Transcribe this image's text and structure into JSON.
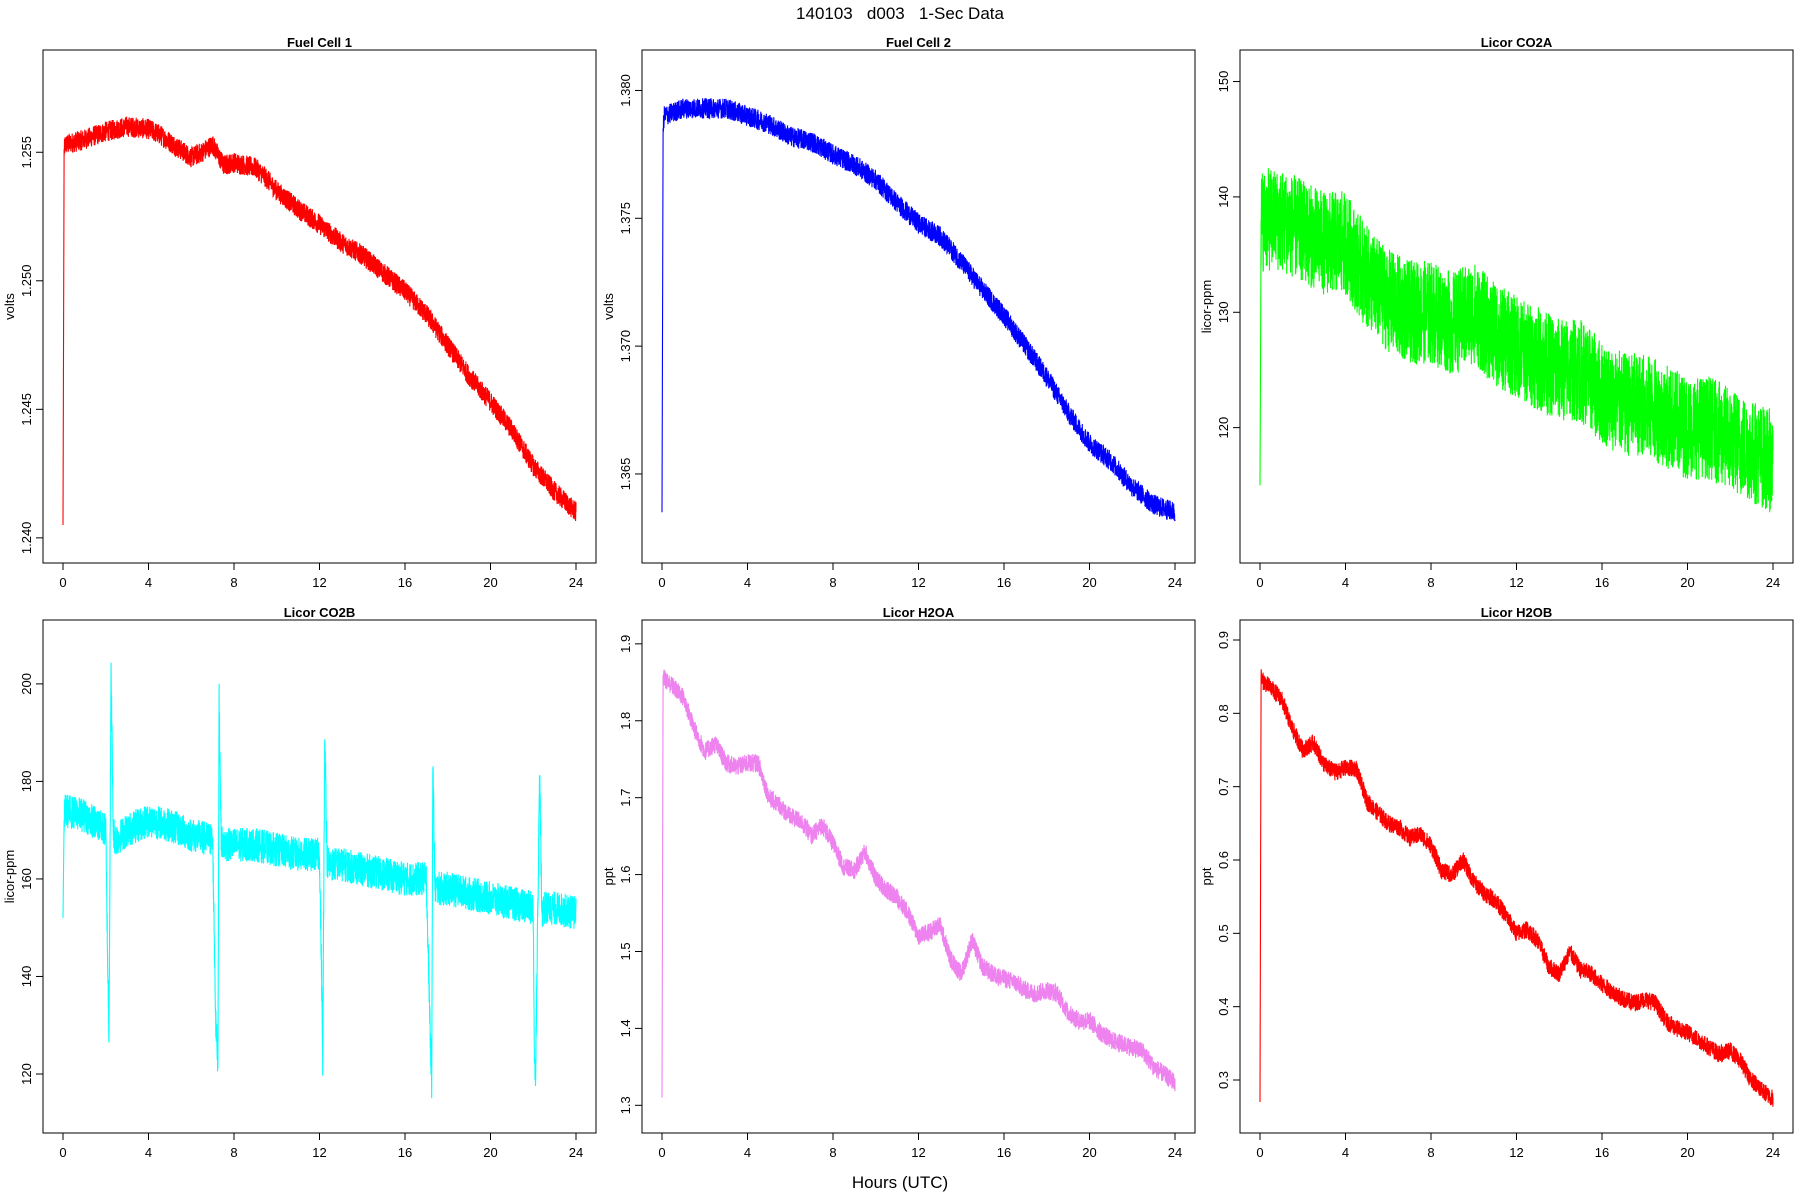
{
  "figure": {
    "title": "140103   d003   1-Sec Data",
    "xlabel": "Hours (UTC)"
  },
  "chart_data": [
    {
      "type": "line",
      "title": "Fuel Cell 1",
      "xlabel": "",
      "ylabel": "volts",
      "color": "#ff0000",
      "xlim": [
        0,
        24
      ],
      "ylim": [
        1.2398,
        1.2582
      ],
      "x_ticks": [
        "0",
        "4",
        "8",
        "12",
        "16",
        "20",
        "24"
      ],
      "y_ticks": [
        "1.240",
        "1.245",
        "1.250",
        "1.255"
      ],
      "y_tick_values": [
        1.24,
        1.245,
        1.25,
        1.255
      ],
      "noise": 0.0004,
      "series": [
        {
          "x": [
            0,
            0.05,
            0.1,
            1,
            2,
            3,
            4,
            4.5,
            5,
            6,
            6.5,
            7,
            7.5,
            8,
            9,
            9.5,
            10,
            11,
            12,
            13,
            14,
            15,
            16,
            17,
            18,
            19,
            20,
            21,
            22,
            23,
            24
          ],
          "y": [
            1.2405,
            1.255,
            1.2553,
            1.2555,
            1.2558,
            1.256,
            1.2559,
            1.2557,
            1.2554,
            1.2548,
            1.255,
            1.2553,
            1.2545,
            1.2546,
            1.2544,
            1.254,
            1.2535,
            1.2528,
            1.2522,
            1.2515,
            1.251,
            1.2503,
            1.2496,
            1.2487,
            1.2475,
            1.2463,
            1.2453,
            1.2442,
            1.2428,
            1.2418,
            1.241
          ]
        }
      ]
    },
    {
      "type": "line",
      "title": "Fuel Cell 2",
      "xlabel": "",
      "ylabel": "volts",
      "color": "#0000ff",
      "xlim": [
        0,
        24
      ],
      "ylim": [
        1.3623,
        1.3808
      ],
      "x_ticks": [
        "0",
        "4",
        "8",
        "12",
        "16",
        "20",
        "24"
      ],
      "y_ticks": [
        "1.365",
        "1.370",
        "1.375",
        "1.380"
      ],
      "y_tick_values": [
        1.365,
        1.37,
        1.375,
        1.38
      ],
      "noise": 0.0004,
      "series": [
        {
          "x": [
            0,
            0.05,
            0.1,
            1,
            2,
            3,
            4,
            5,
            6,
            7,
            8,
            9,
            10,
            11,
            12,
            13,
            14,
            15,
            16,
            17,
            18,
            19,
            20,
            21,
            22,
            23,
            24
          ],
          "y": [
            1.3635,
            1.3785,
            1.379,
            1.3793,
            1.3793,
            1.3793,
            1.379,
            1.3787,
            1.3782,
            1.378,
            1.3775,
            1.3771,
            1.3765,
            1.3756,
            1.3748,
            1.3743,
            1.3733,
            1.3722,
            1.3712,
            1.37,
            1.3688,
            1.3674,
            1.3662,
            1.3655,
            1.3645,
            1.3638,
            1.3635
          ]
        }
      ]
    },
    {
      "type": "line",
      "title": "Licor CO2A",
      "xlabel": "",
      "ylabel": "licor-ppm",
      "color": "#00ff00",
      "xlim": [
        0,
        24
      ],
      "ylim": [
        110,
        151
      ],
      "x_ticks": [
        "0",
        "4",
        "8",
        "12",
        "16",
        "20",
        "24"
      ],
      "y_ticks": [
        "120",
        "130",
        "140",
        "150"
      ],
      "y_tick_values": [
        120,
        130,
        140,
        150
      ],
      "noise": 4.5,
      "series": [
        {
          "x": [
            0,
            0.05,
            0.1,
            1,
            2,
            3,
            4,
            5,
            6,
            7,
            8,
            9,
            10,
            11,
            12,
            13,
            14,
            15,
            16,
            17,
            18,
            19,
            20,
            21,
            22,
            23,
            24
          ],
          "y": [
            115,
            138,
            138,
            138,
            137,
            136,
            136,
            133,
            131,
            130,
            130,
            129,
            130,
            128,
            127,
            126,
            125,
            125,
            123,
            122,
            122,
            121,
            120,
            120,
            119,
            118,
            117
          ]
        }
      ]
    },
    {
      "type": "line",
      "title": "Licor CO2B",
      "xlabel": "",
      "ylabel": "licor-ppm",
      "color": "#00ffff",
      "xlim": [
        0,
        24
      ],
      "ylim": [
        112,
        209
      ],
      "x_ticks": [
        "0",
        "4",
        "8",
        "12",
        "16",
        "20",
        "24"
      ],
      "y_ticks": [
        "120",
        "140",
        "160",
        "180",
        "200"
      ],
      "y_tick_values": [
        120,
        140,
        160,
        180,
        200
      ],
      "noise": 3.5,
      "series": [
        {
          "x": [
            0,
            0.05,
            0.1,
            1,
            2,
            2.1,
            2.15,
            2.25,
            2.35,
            2.45,
            3,
            4,
            5,
            6,
            7,
            7.15,
            7.25,
            7.3,
            7.4,
            7.5,
            8,
            9,
            10,
            11,
            12,
            12.1,
            12.15,
            12.25,
            12.35,
            12.45,
            13,
            14,
            15,
            16,
            17,
            17.2,
            17.25,
            17.3,
            17.4,
            17.5,
            18,
            19,
            20,
            21,
            22,
            22.05,
            22.1,
            22.3,
            22.4,
            22.5,
            23,
            24
          ],
          "y": [
            152,
            172,
            174,
            173,
            170,
            140,
            128,
            203,
            170,
            168,
            170,
            172,
            171,
            169,
            168,
            130,
            123,
            197,
            168,
            167,
            167,
            167,
            166,
            165,
            165,
            140,
            122,
            191,
            164,
            163,
            163,
            162,
            161,
            160,
            160,
            125,
            118,
            185,
            158,
            158,
            158,
            157,
            156,
            155,
            154,
            125,
            118,
            182,
            153,
            154,
            154,
            153
          ]
        }
      ]
    },
    {
      "type": "line",
      "title": "Licor H2OA",
      "xlabel": "",
      "ylabel": "ppt",
      "color": "#ee82ee",
      "xlim": [
        0,
        24
      ],
      "ylim": [
        1.29,
        1.905
      ],
      "x_ticks": [
        "0",
        "4",
        "8",
        "12",
        "16",
        "20",
        "24"
      ],
      "y_ticks": [
        "1.3",
        "1.4",
        "1.5",
        "1.6",
        "1.7",
        "1.8",
        "1.9"
      ],
      "y_tick_values": [
        1.3,
        1.4,
        1.5,
        1.6,
        1.7,
        1.8,
        1.9
      ],
      "noise": 0.012,
      "series": [
        {
          "x": [
            0,
            0.05,
            0.1,
            0.5,
            1,
            1.5,
            2,
            2.5,
            3,
            3.5,
            4,
            4.5,
            5,
            5.5,
            6,
            6.5,
            7,
            7.5,
            8,
            8.5,
            9,
            9.5,
            10,
            10.5,
            11,
            11.5,
            12,
            12.5,
            13,
            13.5,
            14,
            14.5,
            15,
            15.5,
            16,
            16.5,
            17,
            17.5,
            18,
            18.5,
            19,
            19.5,
            20,
            20.5,
            21,
            21.5,
            22,
            22.5,
            23,
            23.5,
            24
          ],
          "y": [
            1.31,
            1.86,
            1.855,
            1.845,
            1.83,
            1.79,
            1.76,
            1.77,
            1.745,
            1.74,
            1.745,
            1.745,
            1.7,
            1.69,
            1.675,
            1.67,
            1.65,
            1.665,
            1.64,
            1.61,
            1.605,
            1.63,
            1.595,
            1.58,
            1.57,
            1.55,
            1.52,
            1.525,
            1.535,
            1.49,
            1.47,
            1.515,
            1.48,
            1.47,
            1.465,
            1.46,
            1.45,
            1.445,
            1.45,
            1.445,
            1.42,
            1.41,
            1.41,
            1.395,
            1.385,
            1.38,
            1.375,
            1.37,
            1.35,
            1.34,
            1.33
          ]
        }
      ]
    },
    {
      "type": "line",
      "title": "Licor H2OB",
      "xlabel": "",
      "ylabel": "ppt",
      "color": "#ff0000",
      "xlim": [
        0,
        24
      ],
      "ylim": [
        0.255,
        0.9
      ],
      "x_ticks": [
        "0",
        "4",
        "8",
        "12",
        "16",
        "20",
        "24"
      ],
      "y_ticks": [
        "0.3",
        "0.4",
        "0.5",
        "0.6",
        "0.7",
        "0.8",
        "0.9"
      ],
      "y_tick_values": [
        0.3,
        0.4,
        0.5,
        0.6,
        0.7,
        0.8,
        0.9
      ],
      "noise": 0.012,
      "series": [
        {
          "x": [
            0,
            0.05,
            0.1,
            0.5,
            1,
            1.5,
            2,
            2.5,
            3,
            3.5,
            4,
            4.5,
            5,
            5.5,
            6,
            6.5,
            7,
            7.5,
            8,
            8.5,
            9,
            9.5,
            10,
            10.5,
            11,
            11.5,
            12,
            12.5,
            13,
            13.5,
            14,
            14.5,
            15,
            15.5,
            16,
            16.5,
            17,
            17.5,
            18,
            18.5,
            19,
            19.5,
            20,
            20.5,
            21,
            21.5,
            22,
            22.5,
            23,
            23.5,
            24
          ],
          "y": [
            0.27,
            0.85,
            0.845,
            0.835,
            0.82,
            0.78,
            0.75,
            0.76,
            0.73,
            0.72,
            0.725,
            0.725,
            0.68,
            0.665,
            0.65,
            0.645,
            0.63,
            0.635,
            0.62,
            0.585,
            0.58,
            0.6,
            0.57,
            0.555,
            0.545,
            0.525,
            0.5,
            0.505,
            0.49,
            0.455,
            0.445,
            0.475,
            0.45,
            0.445,
            0.43,
            0.42,
            0.41,
            0.405,
            0.41,
            0.405,
            0.38,
            0.37,
            0.365,
            0.355,
            0.345,
            0.335,
            0.34,
            0.325,
            0.3,
            0.285,
            0.275
          ]
        }
      ]
    }
  ]
}
